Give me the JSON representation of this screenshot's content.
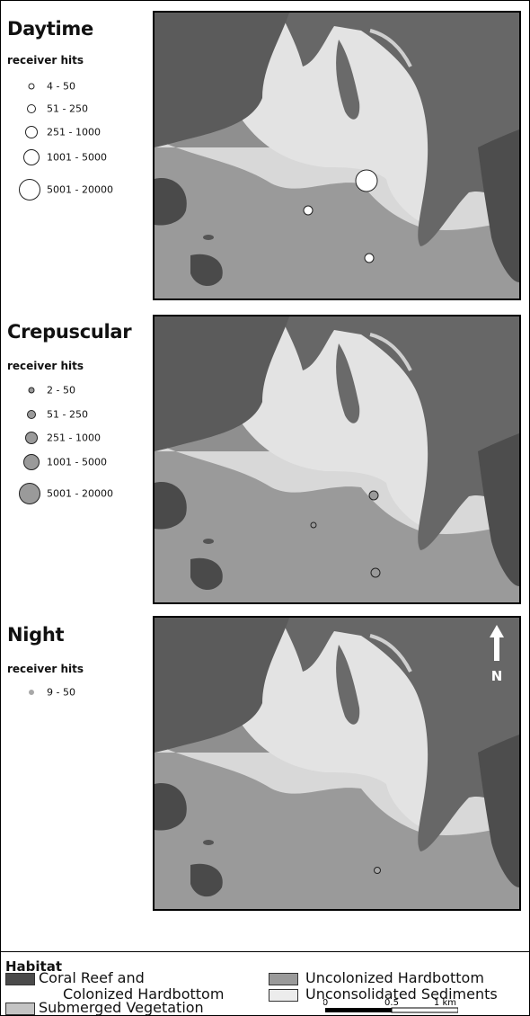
{
  "panels": [
    {
      "title": "Daytime",
      "legend_title": "receiver hits",
      "legend": [
        "4 - 50",
        "51 - 250",
        "251 - 1000",
        "1001 - 5000",
        "5001 - 20000"
      ],
      "symbol_color": "#ffffff",
      "points": [
        {
          "range": "5001 - 20000"
        },
        {
          "range": "51 - 250"
        },
        {
          "range": "51 - 250"
        }
      ]
    },
    {
      "title": "Crepuscular",
      "legend_title": "receiver hits",
      "legend": [
        "2 - 50",
        "51 - 250",
        "251 - 1000",
        "1001 - 5000",
        "5001 - 20000"
      ],
      "symbol_color": "#9a9a9a",
      "points": [
        {
          "range": "51 - 250"
        },
        {
          "range": "2 - 50"
        },
        {
          "range": "51 - 250"
        }
      ]
    },
    {
      "title": "Night",
      "legend_title": "receiver hits",
      "legend": [
        "9 - 50"
      ],
      "symbol_color": "#a8a8a8",
      "points": [
        {
          "range": "9 - 50"
        }
      ],
      "north_label": "N"
    }
  ],
  "habitat": {
    "title": "Habitat",
    "items": [
      {
        "label_line1": "Coral Reef and",
        "label_line2": "Colonized Hardbottom",
        "color": "#4a4a4a"
      },
      {
        "label_line1": "Uncolonized Hardbottom",
        "label_line2": "",
        "color": "#9a9a9a"
      },
      {
        "label_line1": "Submerged Vegetation",
        "label_line2": "",
        "color": "#c4c4c4"
      },
      {
        "label_line1": "Unconsolidated Sediments",
        "label_line2": "",
        "color": "#ececec"
      }
    ]
  },
  "scale_bar": {
    "labels": [
      "0",
      "0.5",
      "1 km"
    ]
  },
  "colors": {
    "land": "#5a5a5a",
    "deep_water": "#8c8c8c",
    "sediment": "#e2e2e2",
    "reef": "#4a4a4a"
  }
}
